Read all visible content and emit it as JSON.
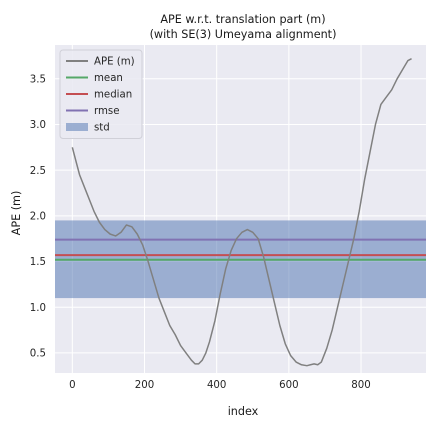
{
  "chart_data": {
    "type": "line",
    "title": "APE w.r.t. translation part (m)",
    "subtitle": "(with SE(3) Umeyama alignment)",
    "xlabel": "index",
    "ylabel": "APE (m)",
    "xlim": [
      -48,
      980
    ],
    "ylim": [
      0.28,
      3.87
    ],
    "xticks": [
      0,
      200,
      400,
      600,
      800
    ],
    "yticks": [
      0.5,
      1.0,
      1.5,
      2.0,
      2.5,
      3.0,
      3.5
    ],
    "xtick_labels": [
      "0",
      "200",
      "400",
      "600",
      "800"
    ],
    "ytick_labels": [
      "0.5",
      "1.0",
      "1.5",
      "2.0",
      "2.5",
      "3.0",
      "3.5"
    ],
    "grid": true,
    "background": "#eaeaf2",
    "legend_position": "top-left",
    "series": [
      {
        "name": "APE (m)",
        "kind": "line",
        "color": "#808080",
        "x": [
          0,
          10,
          20,
          35,
          50,
          60,
          75,
          90,
          105,
          120,
          135,
          150,
          165,
          180,
          195,
          210,
          225,
          240,
          255,
          270,
          285,
          300,
          315,
          330,
          340,
          350,
          360,
          370,
          380,
          395,
          410,
          425,
          440,
          455,
          470,
          485,
          500,
          515,
          530,
          545,
          560,
          575,
          590,
          605,
          620,
          635,
          650,
          660,
          670,
          680,
          690,
          705,
          720,
          735,
          750,
          765,
          780,
          795,
          810,
          825,
          840,
          855,
          870,
          885,
          900,
          915,
          930,
          940
        ],
        "y": [
          2.75,
          2.6,
          2.45,
          2.3,
          2.15,
          2.05,
          1.93,
          1.85,
          1.8,
          1.78,
          1.82,
          1.9,
          1.88,
          1.8,
          1.68,
          1.5,
          1.3,
          1.1,
          0.95,
          0.8,
          0.7,
          0.58,
          0.5,
          0.42,
          0.38,
          0.38,
          0.42,
          0.5,
          0.62,
          0.85,
          1.15,
          1.42,
          1.62,
          1.75,
          1.82,
          1.85,
          1.82,
          1.75,
          1.55,
          1.3,
          1.05,
          0.8,
          0.6,
          0.47,
          0.4,
          0.37,
          0.36,
          0.37,
          0.38,
          0.37,
          0.4,
          0.55,
          0.75,
          1.0,
          1.25,
          1.5,
          1.75,
          2.05,
          2.4,
          2.7,
          3.0,
          3.22,
          3.3,
          3.38,
          3.5,
          3.6,
          3.7,
          3.72
        ]
      },
      {
        "name": "mean",
        "kind": "hline",
        "color": "#55a868",
        "value": 1.52
      },
      {
        "name": "median",
        "kind": "hline",
        "color": "#c44e52",
        "value": 1.57
      },
      {
        "name": "rmse",
        "kind": "hline",
        "color": "#8172b2",
        "value": 1.74
      },
      {
        "name": "std",
        "kind": "band",
        "color": "#4c72b0",
        "lower": 1.1,
        "upper": 1.95
      }
    ]
  }
}
